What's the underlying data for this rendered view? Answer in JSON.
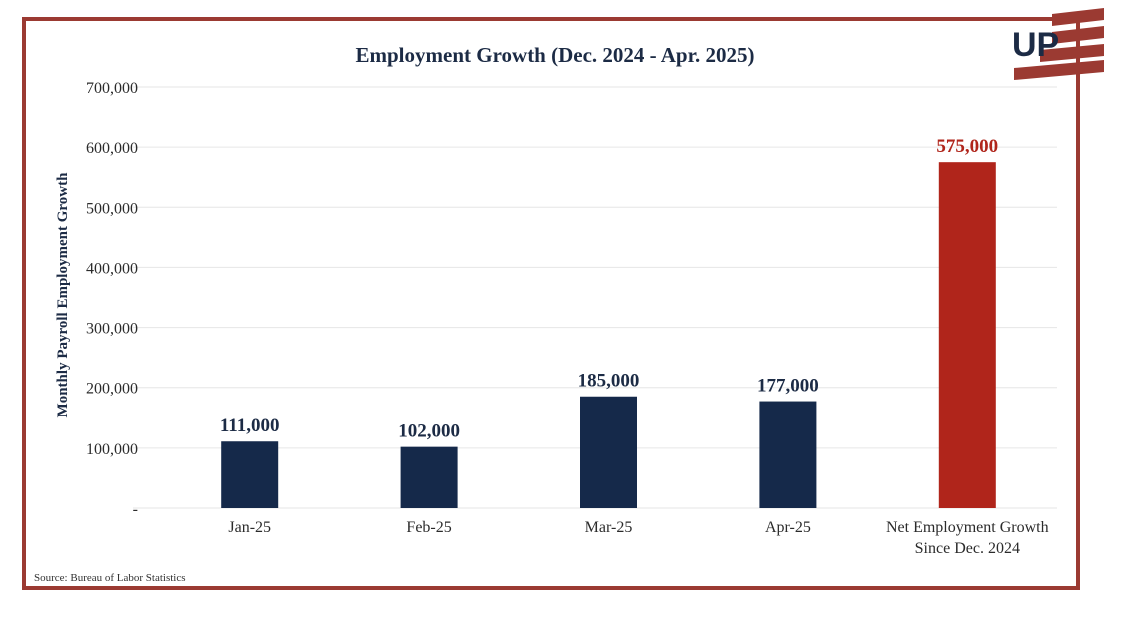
{
  "colors": {
    "frame": "#9b3a32",
    "bar_primary": "#15294a",
    "bar_highlight": "#b0251b",
    "label_primary": "#1c2b45",
    "label_highlight": "#b0251b",
    "grid": "#e6e6e6"
  },
  "logo": {
    "text": "UP",
    "icon": "up-logo-stripes-icon"
  },
  "source": "Source: Bureau of Labor Statistics",
  "chart_data": {
    "type": "bar",
    "title": "Employment Growth (Dec. 2024 - Apr. 2025)",
    "xlabel": "",
    "ylabel": "Monthly Payroll Employment Growth",
    "ylim": [
      0,
      700000
    ],
    "grid": true,
    "legend": "none",
    "y_ticks": [
      "-",
      "100,000",
      "200,000",
      "300,000",
      "400,000",
      "500,000",
      "600,000",
      "700,000"
    ],
    "categories": [
      [
        "Jan-25"
      ],
      [
        "Feb-25"
      ],
      [
        "Mar-25"
      ],
      [
        "Apr-25"
      ],
      [
        "Net Employment Growth",
        "Since Dec. 2024"
      ]
    ],
    "values": [
      111000,
      102000,
      185000,
      177000,
      575000
    ],
    "data_labels": [
      "111,000",
      "102,000",
      "185,000",
      "177,000",
      "575,000"
    ],
    "highlight_index": 4
  }
}
